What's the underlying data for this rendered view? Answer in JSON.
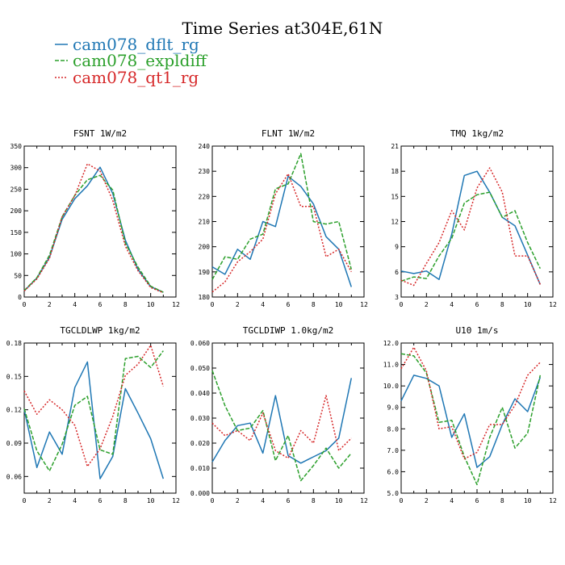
{
  "figure": {
    "title": "Time Series at304E,61N"
  },
  "legend": [
    {
      "label": "cam078_dflt_rg",
      "color": "#1f77b4",
      "dash": "solid"
    },
    {
      "label": "cam078_expldiff",
      "color": "#2ca02c",
      "dash": "dashed"
    },
    {
      "label": "cam078_qt1_rg",
      "color": "#d62728",
      "dash": "dotted"
    }
  ],
  "chart_data": [
    {
      "type": "line",
      "title": "FSNT   1W/m2",
      "x": [
        0,
        1,
        2,
        3,
        4,
        5,
        6,
        7,
        8,
        9,
        10,
        11
      ],
      "xlim": [
        0,
        12
      ],
      "xticks": [
        0,
        2,
        4,
        6,
        8,
        10,
        12
      ],
      "ylim": [
        0,
        350
      ],
      "yticks": [
        0,
        50,
        100,
        150,
        200,
        250,
        300,
        350
      ],
      "ytick_labels": [
        "0",
        "50",
        "100",
        "150",
        "200",
        "250",
        "300",
        "350"
      ],
      "series": [
        {
          "name": "cam078_dflt_rg",
          "values": [
            14,
            44,
            92,
            180,
            228,
            258,
            301,
            240,
            132,
            64,
            24,
            11
          ]
        },
        {
          "name": "cam078_expldiff",
          "values": [
            15,
            45,
            97,
            186,
            236,
            272,
            282,
            248,
            125,
            69,
            25,
            11
          ]
        },
        {
          "name": "cam078_qt1_rg",
          "values": [
            14,
            42,
            90,
            186,
            235,
            309,
            292,
            224,
            118,
            61,
            22,
            10
          ]
        }
      ]
    },
    {
      "type": "line",
      "title": "FLNT   1W/m2",
      "x": [
        0,
        1,
        2,
        3,
        4,
        5,
        6,
        7,
        8,
        9,
        10,
        11
      ],
      "xlim": [
        0,
        12
      ],
      "xticks": [
        0,
        2,
        4,
        6,
        8,
        10,
        12
      ],
      "ylim": [
        180,
        240
      ],
      "yticks": [
        180,
        190,
        200,
        210,
        220,
        230,
        240
      ],
      "ytick_labels": [
        "180",
        "190",
        "200",
        "210",
        "220",
        "230",
        "240"
      ],
      "series": [
        {
          "name": "cam078_dflt_rg",
          "values": [
            192,
            189,
            199,
            195,
            210,
            208,
            228,
            224,
            217,
            204,
            199,
            184
          ]
        },
        {
          "name": "cam078_expldiff",
          "values": [
            187,
            196,
            195,
            203,
            205,
            223,
            225,
            237,
            210,
            209,
            210,
            191
          ]
        },
        {
          "name": "cam078_qt1_rg",
          "values": [
            182,
            186,
            194,
            198,
            203,
            221,
            229,
            216,
            216,
            196,
            199,
            190
          ]
        }
      ]
    },
    {
      "type": "line",
      "title": "TMQ   1kg/m2",
      "x": [
        0,
        1,
        2,
        3,
        4,
        5,
        6,
        7,
        8,
        9,
        10,
        11
      ],
      "xlim": [
        0,
        12
      ],
      "xticks": [
        0,
        2,
        4,
        6,
        8,
        10,
        12
      ],
      "ylim": [
        3,
        21
      ],
      "yticks": [
        3,
        6,
        9,
        12,
        15,
        18,
        21
      ],
      "ytick_labels": [
        "3",
        "6",
        "9",
        "12",
        "15",
        "18",
        "21"
      ],
      "series": [
        {
          "name": "cam078_dflt_rg",
          "values": [
            6.1,
            5.8,
            6.1,
            5.1,
            10.5,
            17.5,
            18.0,
            15.5,
            12.5,
            11.5,
            8.0,
            4.5
          ]
        },
        {
          "name": "cam078_expldiff",
          "values": [
            4.9,
            5.4,
            5.2,
            7.9,
            10.0,
            14.2,
            15.2,
            15.5,
            12.5,
            13.3,
            9.5,
            6.4
          ]
        },
        {
          "name": "cam078_qt1_rg",
          "values": [
            5.0,
            4.4,
            7.0,
            9.5,
            13.3,
            11.0,
            16.0,
            18.4,
            15.5,
            7.9,
            7.9,
            4.5
          ]
        }
      ]
    },
    {
      "type": "line",
      "title": "TGCLDLWP   1kg/m2",
      "x": [
        0,
        1,
        2,
        3,
        4,
        5,
        6,
        7,
        8,
        9,
        10,
        11
      ],
      "xlim": [
        0,
        12
      ],
      "xticks": [
        0,
        2,
        4,
        6,
        8,
        10,
        12
      ],
      "ylim": [
        0.045,
        0.18
      ],
      "yticks": [
        0.06,
        0.09,
        0.12,
        0.15,
        0.18
      ],
      "ytick_labels": [
        "0.06",
        "0.09",
        "0.12",
        "0.15",
        "0.18"
      ],
      "series": [
        {
          "name": "cam078_dflt_rg",
          "values": [
            0.12,
            0.068,
            0.1,
            0.08,
            0.14,
            0.163,
            0.058,
            0.078,
            0.139,
            0.117,
            0.094,
            0.058
          ]
        },
        {
          "name": "cam078_expldiff",
          "values": [
            0.121,
            0.083,
            0.065,
            0.089,
            0.124,
            0.132,
            0.084,
            0.08,
            0.166,
            0.168,
            0.158,
            0.173
          ]
        },
        {
          "name": "cam078_qt1_rg",
          "values": [
            0.137,
            0.116,
            0.129,
            0.12,
            0.106,
            0.069,
            0.085,
            0.114,
            0.151,
            0.161,
            0.178,
            0.141
          ]
        }
      ]
    },
    {
      "type": "line",
      "title": "TGCLDIWP   1.0kg/m2",
      "x": [
        0,
        1,
        2,
        3,
        4,
        5,
        6,
        7,
        8,
        9,
        10,
        11
      ],
      "xlim": [
        0,
        12
      ],
      "xticks": [
        0,
        2,
        4,
        6,
        8,
        10,
        12
      ],
      "ylim": [
        0,
        0.06
      ],
      "yticks": [
        0,
        0.01,
        0.02,
        0.03,
        0.04,
        0.05,
        0.06
      ],
      "ytick_labels": [
        "0.000",
        "0.010",
        "0.020",
        "0.030",
        "0.040",
        "0.050",
        "0.060"
      ],
      "series": [
        {
          "name": "cam078_dflt_rg",
          "values": [
            0.0125,
            0.021,
            0.027,
            0.028,
            0.016,
            0.039,
            0.015,
            0.012,
            0.0145,
            0.017,
            0.022,
            0.046
          ]
        },
        {
          "name": "cam078_expldiff",
          "values": [
            0.049,
            0.035,
            0.025,
            0.026,
            0.033,
            0.013,
            0.023,
            0.005,
            0.011,
            0.018,
            0.01,
            0.016
          ]
        },
        {
          "name": "cam078_qt1_rg",
          "values": [
            0.028,
            0.023,
            0.025,
            0.021,
            0.032,
            0.017,
            0.014,
            0.025,
            0.02,
            0.039,
            0.017,
            0.022
          ]
        }
      ]
    },
    {
      "type": "line",
      "title": "U10   1m/s",
      "x": [
        0,
        1,
        2,
        3,
        4,
        5,
        6,
        7,
        8,
        9,
        10,
        11
      ],
      "xlim": [
        0,
        12
      ],
      "xticks": [
        0,
        2,
        4,
        6,
        8,
        10,
        12
      ],
      "ylim": [
        5,
        12
      ],
      "yticks": [
        5,
        6,
        7,
        8,
        9,
        10,
        11,
        12
      ],
      "ytick_labels": [
        "5.0",
        "6.0",
        "7.0",
        "8.0",
        "9.0",
        "10.0",
        "11.0",
        "12.0"
      ],
      "series": [
        {
          "name": "cam078_dflt_rg",
          "values": [
            9.3,
            10.5,
            10.35,
            10.0,
            7.6,
            8.7,
            6.2,
            6.7,
            8.2,
            9.4,
            8.8,
            10.4
          ]
        },
        {
          "name": "cam078_expldiff",
          "values": [
            11.5,
            11.4,
            10.6,
            8.3,
            8.4,
            6.7,
            5.4,
            7.6,
            9.0,
            7.1,
            7.8,
            10.5
          ]
        },
        {
          "name": "cam078_qt1_rg",
          "values": [
            10.8,
            11.8,
            10.7,
            8.0,
            8.1,
            6.6,
            6.9,
            8.2,
            8.2,
            9.1,
            10.5,
            11.1
          ]
        }
      ]
    }
  ]
}
